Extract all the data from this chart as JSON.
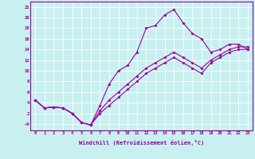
{
  "xlabel": "Windchill (Refroidissement éolien,°C)",
  "bg_color": "#c8f0f0",
  "line_color": "#990099",
  "marker": "D",
  "markersize": 2,
  "linewidth": 0.8,
  "line1_x": [
    0,
    1,
    2,
    3,
    4,
    5,
    6,
    7,
    8,
    9,
    10,
    11,
    12,
    13,
    14,
    15,
    16,
    17,
    18,
    19,
    20,
    21,
    22,
    23
  ],
  "line1_y": [
    4.5,
    3.0,
    3.2,
    3.0,
    2.0,
    0.3,
    -0.2,
    3.5,
    7.5,
    10.0,
    11.0,
    13.5,
    18.0,
    18.5,
    20.5,
    21.5,
    19.0,
    17.0,
    16.0,
    13.5,
    14.0,
    15.0,
    15.0,
    14.0
  ],
  "line2_x": [
    0,
    1,
    2,
    3,
    4,
    5,
    6,
    7,
    8,
    9,
    10,
    11,
    12,
    13,
    14,
    15,
    16,
    17,
    18,
    19,
    20,
    21,
    22,
    23
  ],
  "line2_y": [
    4.5,
    3.0,
    3.2,
    3.0,
    2.0,
    0.3,
    -0.2,
    2.5,
    4.5,
    6.0,
    7.5,
    9.0,
    10.5,
    11.5,
    12.5,
    13.5,
    12.5,
    11.5,
    10.5,
    12.0,
    13.0,
    14.0,
    14.5,
    14.5
  ],
  "line3_x": [
    0,
    1,
    2,
    3,
    4,
    5,
    6,
    7,
    8,
    9,
    10,
    11,
    12,
    13,
    14,
    15,
    16,
    17,
    18,
    19,
    20,
    21,
    22,
    23
  ],
  "line3_y": [
    4.5,
    3.0,
    3.2,
    3.0,
    2.0,
    0.3,
    -0.2,
    2.0,
    3.5,
    5.0,
    6.5,
    8.0,
    9.5,
    10.5,
    11.5,
    12.5,
    11.5,
    10.5,
    9.5,
    11.5,
    12.5,
    13.5,
    14.0,
    14.0
  ],
  "xlim": [
    -0.5,
    23.5
  ],
  "ylim": [
    -1.2,
    23
  ],
  "yticks": [
    0,
    2,
    4,
    6,
    8,
    10,
    12,
    14,
    16,
    18,
    20,
    22
  ],
  "xticks": [
    0,
    1,
    2,
    3,
    4,
    5,
    6,
    7,
    8,
    9,
    10,
    11,
    12,
    13,
    14,
    15,
    16,
    17,
    18,
    19,
    20,
    21,
    22,
    23
  ],
  "ytick_labels": [
    "−0",
    "2",
    "4",
    "6",
    "8",
    "10",
    "12",
    "14",
    "16",
    "18",
    "20",
    "22"
  ]
}
